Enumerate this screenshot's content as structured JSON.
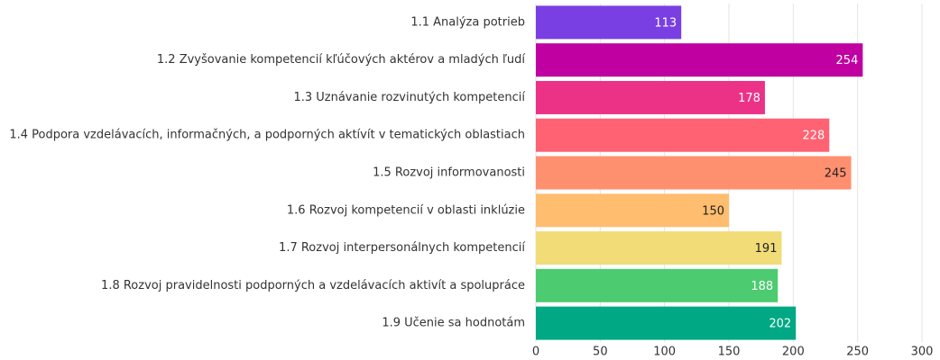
{
  "chart_data": {
    "type": "hbar",
    "categories": [
      "1.1 Analýza potrieb",
      "1.2 Zvyšovanie kompetencií kľúčových aktérov a mladých ľudí",
      "1.3 Uznávanie rozvinutých kompetencií",
      "1.4 Podpora vzdelávacích, informačných, a podporných aktívít v tematických oblastiach",
      "1.5 Rozvoj informovanosti",
      "1.6 Rozvoj kompetencií v oblasti inklúzie",
      "1.7 Rozvoj interpersonálnych kompetencií",
      "1.8 Rozvoj pravidelnosti podporných a vzdelávacích aktivít a spolupráce",
      "1.9 Učenie sa hodnotám"
    ],
    "values": [
      113,
      254,
      178,
      228,
      245,
      150,
      191,
      188,
      202
    ],
    "colors": [
      "#7a3fe2",
      "#c000a0",
      "#ec3287",
      "#ff6272",
      "#ff906f",
      "#ffbd6f",
      "#f1dc78",
      "#4ccb70",
      "#00a884"
    ],
    "xlim": [
      0,
      300
    ],
    "xticks": [
      0,
      50,
      100,
      150,
      200,
      250,
      300
    ],
    "grid": true
  }
}
